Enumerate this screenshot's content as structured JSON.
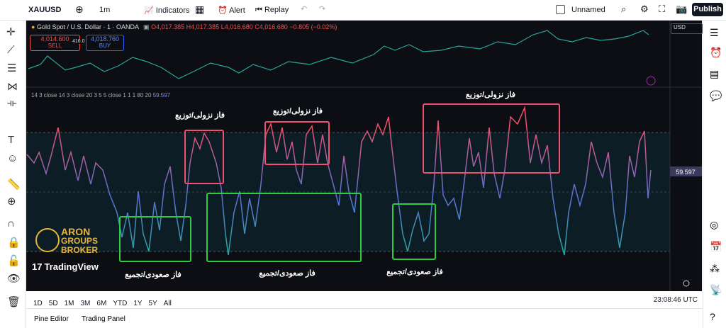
{
  "toolbar": {
    "symbol": "XAUUSD",
    "interval": "1m",
    "indicators": "Indicators",
    "alert": "Alert",
    "replay": "Replay",
    "layout_name": "Unnamed",
    "publish": "Publish"
  },
  "chart": {
    "title": "Gold Spot / U.S. Dollar · 1 · OANDA",
    "open": "O4,017.385",
    "high": "H4,017.385",
    "low": "L4,016.680",
    "close": "C4,016.680",
    "change": "−0.805 (−0.02%)",
    "sell_price": "4,014.600",
    "sell": "SELL",
    "spread": "416.0",
    "buy_price": "4,018.760",
    "buy": "BUY",
    "currency": "USD"
  },
  "indicator": {
    "settings": "14 3 close 14 3 close 20 3 5 5 close 1 1 1 80 20",
    "value": "59.597"
  },
  "annotations": {
    "distribution": [
      "فاز نزولی/توزیع",
      "فاز نزولی/توزیع",
      "فاز نزولی/توزیع"
    ],
    "accumulation": [
      "فاز صعودی/تجمیع",
      "فاز صعودی/تجمیع",
      "فاز صعودی/تجمیع"
    ]
  },
  "logo": {
    "line1": "ARON",
    "line2": "GROUPS",
    "line3": "BROKER"
  },
  "watermark": "TradingView",
  "ranges": [
    "1D",
    "5D",
    "1M",
    "3M",
    "6M",
    "YTD",
    "1Y",
    "5Y",
    "All"
  ],
  "clock": "23:08:46 UTC",
  "bottom_tabs": [
    "Pine Editor",
    "Trading Panel"
  ]
}
